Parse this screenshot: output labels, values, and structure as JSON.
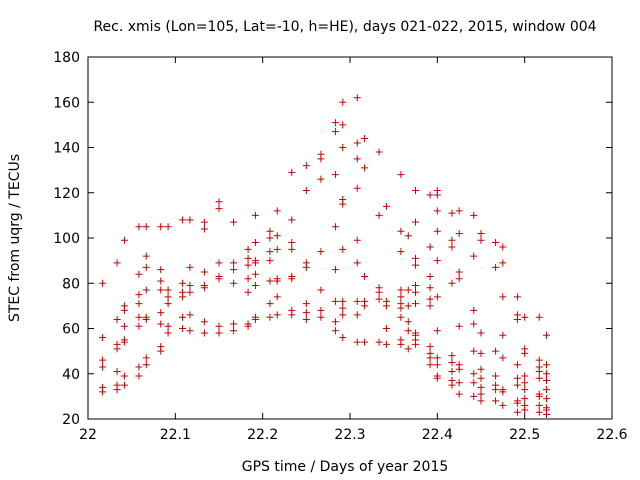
{
  "chart_data": {
    "type": "scatter",
    "title": "Rec. xmis (Lon=105, Lat=-10, h=HE), days 021-022, 2015, window 004",
    "xlabel": "GPS time / Days of year 2015",
    "ylabel": "STEC from uqrg / TECUs",
    "xlim": [
      22,
      22.6
    ],
    "ylim": [
      20,
      180
    ],
    "xticks": [
      22,
      22.1,
      22.2,
      22.3,
      22.4,
      22.5,
      22.6
    ],
    "xtick_labels": [
      "22",
      "22.1",
      "22.2",
      "22.3",
      "22.4",
      "22.5",
      "22.6"
    ],
    "yticks": [
      20,
      40,
      60,
      80,
      100,
      120,
      140,
      160,
      180
    ],
    "ytick_labels": [
      "20",
      "40",
      "60",
      "80",
      "100",
      "120",
      "140",
      "160",
      "180"
    ],
    "marker": "+",
    "color": "#cc0000",
    "grid": false,
    "series": [
      {
        "name": "STEC",
        "points": [
          [
            22.0167,
            80
          ],
          [
            22.0167,
            56
          ],
          [
            22.0167,
            46
          ],
          [
            22.0167,
            43
          ],
          [
            22.0167,
            34
          ],
          [
            22.0167,
            32
          ],
          [
            22.0333,
            89
          ],
          [
            22.0333,
            64
          ],
          [
            22.0333,
            53
          ],
          [
            22.0333,
            51
          ],
          [
            22.0333,
            41
          ],
          [
            22.0333,
            35
          ],
          [
            22.0333,
            33
          ],
          [
            22.0417,
            99
          ],
          [
            22.0417,
            70
          ],
          [
            22.0417,
            68
          ],
          [
            22.0417,
            61
          ],
          [
            22.0417,
            55
          ],
          [
            22.0417,
            54
          ],
          [
            22.0417,
            39
          ],
          [
            22.0417,
            35
          ],
          [
            22.0583,
            105
          ],
          [
            22.0583,
            84
          ],
          [
            22.0583,
            75
          ],
          [
            22.0583,
            71
          ],
          [
            22.0583,
            65
          ],
          [
            22.0583,
            61
          ],
          [
            22.0583,
            43
          ],
          [
            22.0583,
            39
          ],
          [
            22.0667,
            105
          ],
          [
            22.0667,
            92
          ],
          [
            22.0667,
            87
          ],
          [
            22.0667,
            77
          ],
          [
            22.0667,
            65
          ],
          [
            22.0667,
            64
          ],
          [
            22.0667,
            47
          ],
          [
            22.0667,
            44
          ],
          [
            22.0833,
            105
          ],
          [
            22.0833,
            86
          ],
          [
            22.0833,
            81
          ],
          [
            22.0833,
            77
          ],
          [
            22.0833,
            67
          ],
          [
            22.0833,
            62
          ],
          [
            22.0833,
            52
          ],
          [
            22.0833,
            50
          ],
          [
            22.0917,
            105
          ],
          [
            22.0917,
            77
          ],
          [
            22.0917,
            74
          ],
          [
            22.0917,
            71
          ],
          [
            22.0917,
            61
          ],
          [
            22.0917,
            58
          ],
          [
            22.1083,
            108
          ],
          [
            22.1083,
            80
          ],
          [
            22.1083,
            76
          ],
          [
            22.1083,
            74
          ],
          [
            22.1083,
            65
          ],
          [
            22.1083,
            60
          ],
          [
            22.1167,
            108
          ],
          [
            22.1167,
            87
          ],
          [
            22.1167,
            79
          ],
          [
            22.1167,
            76
          ],
          [
            22.1167,
            66
          ],
          [
            22.1167,
            59
          ],
          [
            22.1333,
            107
          ],
          [
            22.1333,
            104
          ],
          [
            22.1333,
            85
          ],
          [
            22.1333,
            79
          ],
          [
            22.1333,
            78
          ],
          [
            22.1333,
            63
          ],
          [
            22.1333,
            58
          ],
          [
            22.15,
            116
          ],
          [
            22.15,
            113
          ],
          [
            22.15,
            89
          ],
          [
            22.15,
            83
          ],
          [
            22.15,
            82
          ],
          [
            22.15,
            61
          ],
          [
            22.15,
            58
          ],
          [
            22.1667,
            107
          ],
          [
            22.1667,
            89
          ],
          [
            22.1667,
            86
          ],
          [
            22.1667,
            80
          ],
          [
            22.1667,
            62
          ],
          [
            22.1667,
            59
          ],
          [
            22.1833,
            95
          ],
          [
            22.1833,
            91
          ],
          [
            22.1833,
            88
          ],
          [
            22.1833,
            82
          ],
          [
            22.1833,
            76
          ],
          [
            22.1833,
            62
          ],
          [
            22.1833,
            61
          ],
          [
            22.1917,
            110
          ],
          [
            22.1917,
            98
          ],
          [
            22.1917,
            90
          ],
          [
            22.1917,
            89
          ],
          [
            22.1917,
            84
          ],
          [
            22.1917,
            79
          ],
          [
            22.1917,
            65
          ],
          [
            22.1917,
            64
          ],
          [
            22.2083,
            103
          ],
          [
            22.2083,
            100
          ],
          [
            22.2083,
            94
          ],
          [
            22.2083,
            90
          ],
          [
            22.2083,
            81
          ],
          [
            22.2083,
            71
          ],
          [
            22.2083,
            65
          ],
          [
            22.2167,
            112
          ],
          [
            22.2167,
            101
          ],
          [
            22.2167,
            95
          ],
          [
            22.2167,
            82
          ],
          [
            22.2167,
            81
          ],
          [
            22.2167,
            74
          ],
          [
            22.2167,
            66
          ],
          [
            22.2333,
            129
          ],
          [
            22.2333,
            108
          ],
          [
            22.2333,
            98
          ],
          [
            22.2333,
            95
          ],
          [
            22.2333,
            83
          ],
          [
            22.2333,
            82
          ],
          [
            22.2333,
            68
          ],
          [
            22.2333,
            66
          ],
          [
            22.25,
            132
          ],
          [
            22.25,
            121
          ],
          [
            22.25,
            89
          ],
          [
            22.25,
            87
          ],
          [
            22.25,
            71
          ],
          [
            22.25,
            67
          ],
          [
            22.25,
            64
          ],
          [
            22.2667,
            137
          ],
          [
            22.2667,
            135
          ],
          [
            22.2667,
            126
          ],
          [
            22.2667,
            94
          ],
          [
            22.2667,
            77
          ],
          [
            22.2667,
            68
          ],
          [
            22.2667,
            65
          ],
          [
            22.2833,
            151
          ],
          [
            22.2833,
            147
          ],
          [
            22.2833,
            128
          ],
          [
            22.2833,
            105
          ],
          [
            22.2833,
            86
          ],
          [
            22.2833,
            72
          ],
          [
            22.2833,
            63
          ],
          [
            22.2833,
            59
          ],
          [
            22.2917,
            160
          ],
          [
            22.2917,
            150
          ],
          [
            22.2917,
            140
          ],
          [
            22.2917,
            117
          ],
          [
            22.2917,
            115
          ],
          [
            22.2917,
            95
          ],
          [
            22.2917,
            72
          ],
          [
            22.2917,
            69
          ],
          [
            22.2917,
            66
          ],
          [
            22.2917,
            56
          ],
          [
            22.3083,
            162
          ],
          [
            22.3083,
            142
          ],
          [
            22.3083,
            135
          ],
          [
            22.3083,
            122
          ],
          [
            22.3083,
            99
          ],
          [
            22.3083,
            89
          ],
          [
            22.3083,
            72
          ],
          [
            22.3083,
            66
          ],
          [
            22.3083,
            54
          ],
          [
            22.3167,
            144
          ],
          [
            22.3167,
            131
          ],
          [
            22.3167,
            83
          ],
          [
            22.3167,
            72
          ],
          [
            22.3167,
            70
          ],
          [
            22.3167,
            54
          ],
          [
            22.3333,
            138
          ],
          [
            22.3333,
            110
          ],
          [
            22.3333,
            78
          ],
          [
            22.3333,
            76
          ],
          [
            22.3333,
            73
          ],
          [
            22.3333,
            54
          ],
          [
            22.3417,
            114
          ],
          [
            22.3417,
            72
          ],
          [
            22.3417,
            70
          ],
          [
            22.3417,
            60
          ],
          [
            22.3417,
            53
          ],
          [
            22.3583,
            128
          ],
          [
            22.3583,
            103
          ],
          [
            22.3583,
            94
          ],
          [
            22.3583,
            77
          ],
          [
            22.3583,
            74
          ],
          [
            22.3583,
            71
          ],
          [
            22.3583,
            69
          ],
          [
            22.3583,
            65
          ],
          [
            22.3583,
            55
          ],
          [
            22.3583,
            53
          ],
          [
            22.3667,
            101
          ],
          [
            22.3667,
            77
          ],
          [
            22.3667,
            70
          ],
          [
            22.3667,
            63
          ],
          [
            22.3667,
            59
          ],
          [
            22.3667,
            51
          ],
          [
            22.375,
            121
          ],
          [
            22.375,
            107
          ],
          [
            22.375,
            91
          ],
          [
            22.375,
            88
          ],
          [
            22.375,
            79
          ],
          [
            22.375,
            76
          ],
          [
            22.375,
            71
          ],
          [
            22.375,
            58
          ],
          [
            22.375,
            57
          ],
          [
            22.375,
            55
          ],
          [
            22.375,
            53
          ],
          [
            22.3917,
            119
          ],
          [
            22.3917,
            96
          ],
          [
            22.3917,
            83
          ],
          [
            22.3917,
            78
          ],
          [
            22.3917,
            73
          ],
          [
            22.3917,
            70
          ],
          [
            22.3917,
            52
          ],
          [
            22.3917,
            49
          ],
          [
            22.3917,
            47
          ],
          [
            22.3917,
            44
          ],
          [
            22.4,
            121
          ],
          [
            22.4,
            119
          ],
          [
            22.4,
            112
          ],
          [
            22.4,
            103
          ],
          [
            22.4,
            90
          ],
          [
            22.4,
            74
          ],
          [
            22.4,
            59
          ],
          [
            22.4,
            47
          ],
          [
            22.4,
            44
          ],
          [
            22.4,
            39
          ],
          [
            22.4,
            38
          ],
          [
            22.4167,
            111
          ],
          [
            22.4167,
            99
          ],
          [
            22.4167,
            96
          ],
          [
            22.4167,
            80
          ],
          [
            22.4167,
            48
          ],
          [
            22.4167,
            45
          ],
          [
            22.4167,
            41
          ],
          [
            22.4167,
            37
          ],
          [
            22.4167,
            35
          ],
          [
            22.425,
            112
          ],
          [
            22.425,
            102
          ],
          [
            22.425,
            85
          ],
          [
            22.425,
            82
          ],
          [
            22.425,
            61
          ],
          [
            22.425,
            44
          ],
          [
            22.425,
            42
          ],
          [
            22.425,
            36
          ],
          [
            22.425,
            31
          ],
          [
            22.4417,
            110
          ],
          [
            22.4417,
            92
          ],
          [
            22.4417,
            68
          ],
          [
            22.4417,
            62
          ],
          [
            22.4417,
            50
          ],
          [
            22.4417,
            40
          ],
          [
            22.4417,
            36
          ],
          [
            22.4417,
            30
          ],
          [
            22.45,
            102
          ],
          [
            22.45,
            99
          ],
          [
            22.45,
            58
          ],
          [
            22.45,
            49
          ],
          [
            22.45,
            42
          ],
          [
            22.45,
            38
          ],
          [
            22.45,
            34
          ],
          [
            22.45,
            31
          ],
          [
            22.45,
            28
          ],
          [
            22.4667,
            98
          ],
          [
            22.4667,
            87
          ],
          [
            22.4667,
            50
          ],
          [
            22.4667,
            39
          ],
          [
            22.4667,
            35
          ],
          [
            22.4667,
            33
          ],
          [
            22.4667,
            28
          ],
          [
            22.475,
            96
          ],
          [
            22.475,
            89
          ],
          [
            22.475,
            74
          ],
          [
            22.475,
            57
          ],
          [
            22.475,
            47
          ],
          [
            22.475,
            33
          ],
          [
            22.475,
            32
          ],
          [
            22.475,
            26
          ],
          [
            22.4917,
            74
          ],
          [
            22.4917,
            66
          ],
          [
            22.4917,
            64
          ],
          [
            22.4917,
            44
          ],
          [
            22.4917,
            38
          ],
          [
            22.4917,
            35
          ],
          [
            22.4917,
            28
          ],
          [
            22.4917,
            27
          ],
          [
            22.4917,
            23
          ],
          [
            22.5,
            65
          ],
          [
            22.5,
            51
          ],
          [
            22.5,
            49
          ],
          [
            22.5,
            39
          ],
          [
            22.5,
            36
          ],
          [
            22.5,
            33
          ],
          [
            22.5,
            29
          ],
          [
            22.5,
            26
          ],
          [
            22.5,
            24
          ],
          [
            22.5167,
            65
          ],
          [
            22.5167,
            46
          ],
          [
            22.5167,
            43
          ],
          [
            22.5167,
            41
          ],
          [
            22.5167,
            38
          ],
          [
            22.5167,
            31
          ],
          [
            22.5167,
            30
          ],
          [
            22.5167,
            26
          ],
          [
            22.5167,
            23
          ],
          [
            22.525,
            57
          ],
          [
            22.525,
            44
          ],
          [
            22.525,
            40
          ],
          [
            22.525,
            37
          ],
          [
            22.525,
            33
          ],
          [
            22.525,
            29
          ],
          [
            22.525,
            25
          ],
          [
            22.525,
            24
          ],
          [
            22.525,
            22
          ]
        ]
      }
    ]
  }
}
